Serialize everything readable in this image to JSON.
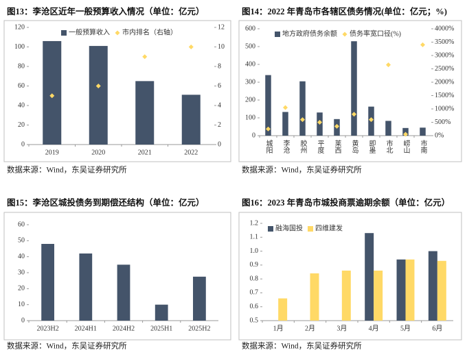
{
  "chart_data": [
    {
      "type": "bar",
      "title": "图13：李沧区近年一般预算收入情况（单位：亿元）",
      "source": "数据来源：Wind，东吴证券研究所",
      "categories": [
        "2019",
        "2020",
        "2021",
        "2022"
      ],
      "series": [
        {
          "name": "一般预算收入",
          "type": "bar",
          "color": "#44546a",
          "values": [
            106,
            101,
            65,
            51
          ]
        },
        {
          "name": "市内排名（右轴）",
          "type": "scatter",
          "axis": "y2",
          "color": "#ffd966",
          "values": [
            5,
            6,
            9,
            10
          ]
        }
      ],
      "ylim": [
        0,
        120
      ],
      "yticks": [
        0,
        20,
        40,
        60,
        80,
        100,
        120
      ],
      "y2lim": [
        0,
        12
      ],
      "y2ticks": [
        0,
        2,
        4,
        6,
        8,
        10,
        12
      ],
      "legend": "upper center"
    },
    {
      "type": "bar",
      "title": "图14：2022 年青岛市各辖区债务情况(单位：亿元；%)",
      "source": "数据来源：Wind，东吴证券研究所",
      "categories": [
        "城阳",
        "李沧",
        "胶州",
        "平度",
        "莱西",
        "黄岛",
        "即墨",
        "市北",
        "崂山",
        "市南"
      ],
      "series": [
        {
          "name": "地方政府债务余额",
          "type": "bar",
          "color": "#44546a",
          "values": [
            340,
            133,
            305,
            130,
            93,
            530,
            163,
            83,
            43,
            45
          ]
        },
        {
          "name": "债务率宽口径(%)",
          "type": "scatter",
          "axis": "y2",
          "color": "#ffd966",
          "values": [
            250,
            1050,
            600,
            500,
            350,
            800,
            600,
            2650,
            50,
            3400
          ]
        }
      ],
      "ylim": [
        0,
        600
      ],
      "yticks": [
        0,
        100,
        200,
        300,
        400,
        500,
        600
      ],
      "y2lim": [
        0,
        4000
      ],
      "y2ticks": [
        {
          "value": 0,
          "label": "0%"
        },
        {
          "value": 500,
          "label": "500%"
        },
        {
          "value": 1000,
          "label": "1000%"
        },
        {
          "value": 1500,
          "label": "1500%"
        },
        {
          "value": 2000,
          "label": "2000%"
        },
        {
          "value": 2500,
          "label": "2500%"
        },
        {
          "value": 3000,
          "label": "3000%"
        },
        {
          "value": 3500,
          "label": "3500%"
        },
        {
          "value": 4000,
          "label": "4000%"
        }
      ],
      "legend": "upper center"
    },
    {
      "type": "bar",
      "title": "图15：李沧区城投债务到期偿还结构（单位：亿元）",
      "source": "数据来源：Wind，东吴证券研究所",
      "categories": [
        "2023H2",
        "2024H1",
        "2024H2",
        "2025H1",
        "2025H2"
      ],
      "values": [
        48,
        42,
        35,
        10,
        27.5
      ],
      "color": "#44546a",
      "ylim": [
        0,
        60
      ],
      "yticks": [
        0,
        10,
        20,
        30,
        40,
        50,
        60
      ]
    },
    {
      "type": "bar",
      "title": "图16：2023 年青岛市城投商票逾期余额（单位：亿元）",
      "source": "数据来源：Wind，东吴证券研究所",
      "categories": [
        "1月",
        "2月",
        "3月",
        "4月",
        "5月",
        "6月"
      ],
      "series": [
        {
          "name": "融海国投",
          "type": "bar",
          "color": "#44546a",
          "values": [
            null,
            null,
            null,
            1.13,
            0.94,
            1.0
          ]
        },
        {
          "name": "四维建发",
          "type": "bar",
          "color": "#ffd966",
          "values": [
            0.66,
            0.84,
            0.86,
            0.86,
            0.94,
            0.93
          ]
        }
      ],
      "ylim": [
        0.5,
        1.2
      ],
      "yticks": [
        0.5,
        0.6,
        0.7,
        0.8,
        0.9,
        {
          "value": 1,
          "label": "1.0"
        },
        1.1,
        1.2
      ],
      "legend": "upper left"
    }
  ]
}
